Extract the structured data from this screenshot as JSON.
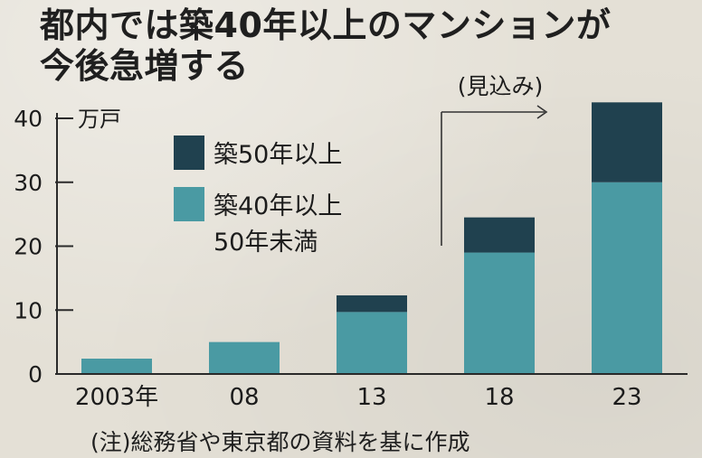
{
  "title": "都内では築40年以上のマンションが\n今後急増する",
  "note": "(注)総務省や東京都の資料を基に作成",
  "chart_data": {
    "type": "bar",
    "stacked": true,
    "unit_label": "万戸",
    "categories": [
      "2003年",
      "08",
      "13",
      "18",
      "23"
    ],
    "series": [
      {
        "name": "築40年以上\n50年未満",
        "color": "#4a9aa3",
        "values": [
          2.4,
          5.0,
          9.7,
          19.0,
          30.0
        ]
      },
      {
        "name": "築50年以上",
        "color": "#20414f",
        "values": [
          0,
          0,
          2.6,
          5.5,
          12.5
        ]
      }
    ],
    "ylim": [
      0,
      40
    ],
    "yticks": [
      0,
      10,
      20,
      30,
      40
    ],
    "projection_label": "(見込み)",
    "grid": false,
    "legend_position": "top-left"
  }
}
